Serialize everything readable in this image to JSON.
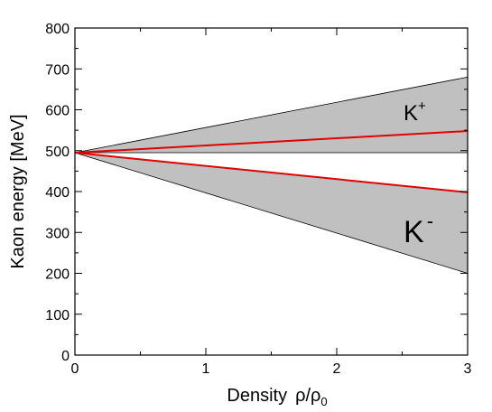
{
  "chart_data": {
    "type": "area",
    "xlabel": "Density",
    "xlabel_symbol": "ρ/ρ",
    "xlabel_subscript": "0",
    "ylabel": "Kaon energy [MeV]",
    "xlim": [
      0,
      3
    ],
    "ylim": [
      0,
      800
    ],
    "x_ticks": [
      "0",
      "1",
      "2",
      "3"
    ],
    "y_ticks": [
      "0",
      "100",
      "200",
      "300",
      "400",
      "500",
      "600",
      "700",
      "800"
    ],
    "grid": false,
    "bands": [
      {
        "label": "K",
        "label_sup": "+",
        "fill_color": "#c0c0c0",
        "x": [
          0,
          3
        ],
        "upper": [
          495,
          680
        ],
        "lower": [
          495,
          495
        ],
        "line": {
          "color": "#e00000",
          "x": [
            0,
            3
          ],
          "y": [
            495,
            548
          ]
        }
      },
      {
        "label": "K",
        "label_sup": "-",
        "fill_color": "#c0c0c0",
        "x": [
          0,
          3
        ],
        "upper": [
          495,
          398
        ],
        "lower": [
          495,
          200
        ],
        "line": {
          "color": "#e00000",
          "x": [
            0,
            3
          ],
          "y": [
            495,
            398
          ]
        }
      }
    ]
  }
}
